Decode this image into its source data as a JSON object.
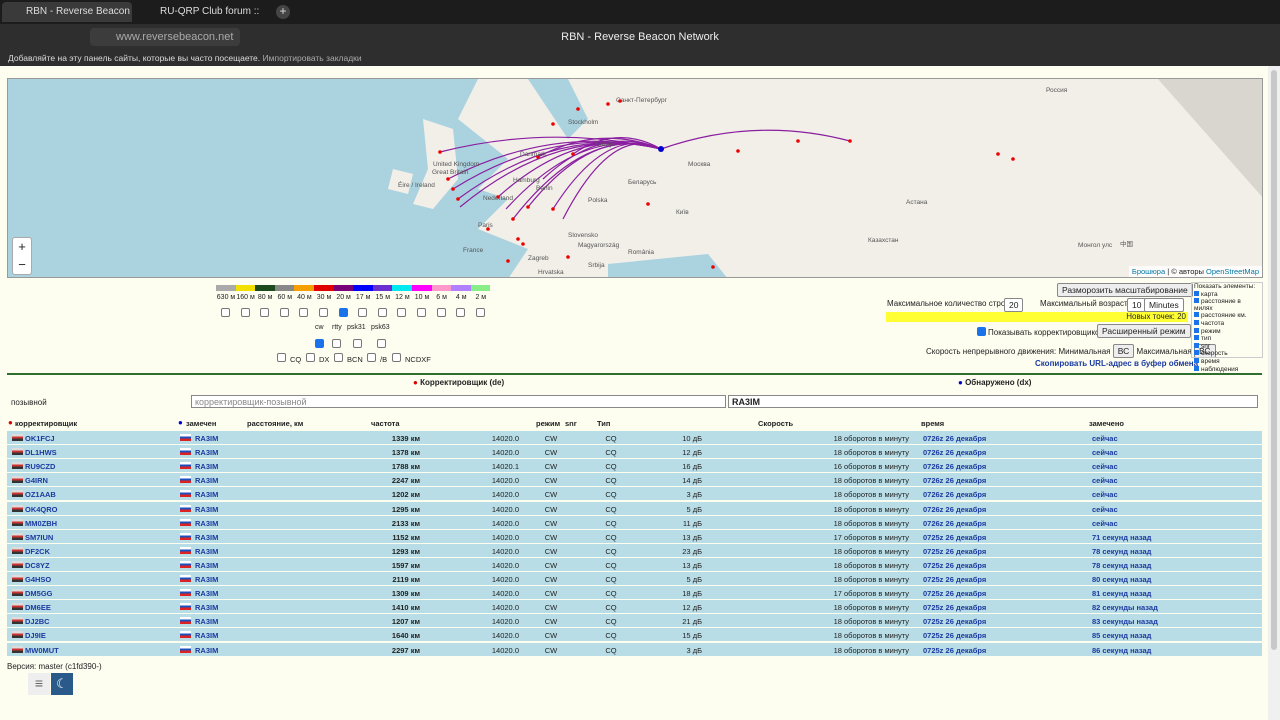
{
  "browser": {
    "tabs": [
      "RBN - Reverse Beacon N",
      "RU-QRP Club forum :: Тема"
    ],
    "url": "www.reversebeacon.net",
    "page_title": "RBN - Reverse Beacon Network",
    "bookmarks_hint": "Добавляйте на эту панель сайты, которые вы часто посещаете.",
    "bookmarks_import": "Импортировать закладки"
  },
  "map": {
    "labels": [
      "Stockholm",
      "Danmark",
      "United Kingdom",
      "Great Britain",
      "Éire / Ireland",
      "Hamburg",
      "Nederland",
      "Berlin",
      "Polska",
      "Paris",
      "France",
      "Latvija",
      "Санкт-Петербург",
      "Москва",
      "Беларусь",
      "Київ",
      "Slovensko",
      "Magyarország",
      "Zagreb",
      "Hrvatska",
      "România",
      "Srbija",
      "Россия",
      "Астана",
      "Казахстан",
      "Монгол улс",
      "中国"
    ],
    "zoom_in": "+",
    "zoom_out": "−",
    "attribution": [
      "Брошюра",
      "| © авторы",
      "OpenStreetMap"
    ]
  },
  "bands": [
    "630 м",
    "160 м",
    "80 м",
    "60 м",
    "40 м",
    "30 м",
    "20 м",
    "17 м",
    "15 м",
    "12 м",
    "10 м",
    "6 м",
    "4 м",
    "2 м"
  ],
  "band_colors": [
    "#aaaaaa",
    "#f2e000",
    "#1d4a1d",
    "#888888",
    "#f5a000",
    "#e00000",
    "#7a007a",
    "#0000ff",
    "#6a2fd0",
    "#00e8f0",
    "#ff00ff",
    "#ff99cc",
    "#b080ff",
    "#88ee88"
  ],
  "band_checked": [
    false,
    false,
    false,
    false,
    false,
    false,
    true,
    false,
    false,
    false,
    false,
    false,
    false,
    false
  ],
  "modes": [
    "cw",
    "rtty",
    "psk31",
    "psk63"
  ],
  "mode_checked": [
    true,
    false,
    false,
    false
  ],
  "types": [
    "CQ",
    "DX",
    "BCN",
    "/B",
    "NCDXF"
  ],
  "controls": {
    "unfreeze": "Разморозить масштабирование",
    "max_rows": "Максимальное количество строк",
    "max_rows_value": "20",
    "max_age": "Максимальный возраст:",
    "max_age_value": "10",
    "max_age_unit": "Minutes",
    "new_points": "Новых точек: 20",
    "show_spotters": "Показывать корректировщиков",
    "extended": "Расширенный режим",
    "speed": "Скорость непрерывного движения:",
    "min": "Минимальная",
    "max": "Максимальная",
    "bc": "ВС",
    "copy_url": "Скопировать URL-адрес в буфер обмена"
  },
  "show_elements": {
    "title": "Показать элементы:",
    "items": [
      "карта",
      "расстояние в милях",
      "расстояние км.",
      "частота",
      "режим",
      "тип",
      "snr",
      "скорость",
      "время",
      "наблюдения"
    ]
  },
  "filter": {
    "de": "Корректировщик (de)",
    "dx": "Обнаружено (dx)",
    "label": "позывной",
    "de_placeholder": "корректировщик-позывной",
    "dx_value": "RA3IM"
  },
  "table": {
    "headers": [
      "корректировщик",
      "замечен",
      "расстояние, км",
      "частота",
      "режим",
      "Тип",
      "snr",
      "Скорость",
      "время",
      "замечено"
    ],
    "rows": [
      [
        "OK1FCJ",
        "RA3IM",
        "1339 км",
        "14020.0",
        "CW",
        "CQ",
        "10 дБ",
        "18 оборотов в минуту",
        "0726z 26 декабря",
        "сейчас"
      ],
      [
        "DL1HWS",
        "RA3IM",
        "1378 км",
        "14020.0",
        "CW",
        "CQ",
        "12 дБ",
        "18 оборотов в минуту",
        "0726z 26 декабря",
        "сейчас"
      ],
      [
        "RU9CZD",
        "RA3IM",
        "1788 км",
        "14020.1",
        "CW",
        "CQ",
        "16 дБ",
        "16 оборотов в минуту",
        "0726z 26 декабря",
        "сейчас"
      ],
      [
        "G4IRN",
        "RA3IM",
        "2247 км",
        "14020.0",
        "CW",
        "CQ",
        "14 дБ",
        "18 оборотов в минуту",
        "0726z 26 декабря",
        "сейчас"
      ],
      [
        "OZ1AAB",
        "RA3IM",
        "1202 км",
        "14020.0",
        "CW",
        "CQ",
        "3 дБ",
        "18 оборотов в минуту",
        "0726z 26 декабря",
        "сейчас"
      ],
      [
        "OK4QRO",
        "RA3IM",
        "1295 км",
        "14020.0",
        "CW",
        "CQ",
        "5 дБ",
        "18 оборотов в минуту",
        "0726z 26 декабря",
        "сейчас"
      ],
      [
        "MM0ZBH",
        "RA3IM",
        "2133 км",
        "14020.0",
        "CW",
        "CQ",
        "11 дБ",
        "18 оборотов в минуту",
        "0726z 26 декабря",
        "сейчас"
      ],
      [
        "SM7IUN",
        "RA3IM",
        "1152 км",
        "14020.0",
        "CW",
        "CQ",
        "13 дБ",
        "17 оборотов в минуту",
        "0725z 26 декабря",
        "71 секунд назад"
      ],
      [
        "DF2CK",
        "RA3IM",
        "1293 км",
        "14020.0",
        "CW",
        "CQ",
        "23 дБ",
        "18 оборотов в минуту",
        "0725z 26 декабря",
        "78 секунд назад"
      ],
      [
        "DC8YZ",
        "RA3IM",
        "1597 км",
        "14020.0",
        "CW",
        "CQ",
        "13 дБ",
        "18 оборотов в минуту",
        "0725z 26 декабря",
        "78 секунд назад"
      ],
      [
        "G4HSO",
        "RA3IM",
        "2119 км",
        "14020.0",
        "CW",
        "CQ",
        "5 дБ",
        "18 оборотов в минуту",
        "0725z 26 декабря",
        "80 секунд назад"
      ],
      [
        "DM5GG",
        "RA3IM",
        "1309 км",
        "14020.0",
        "CW",
        "CQ",
        "18 дБ",
        "17 оборотов в минуту",
        "0725z 26 декабря",
        "81 секунд назад"
      ],
      [
        "DM6EE",
        "RA3IM",
        "1410 км",
        "14020.0",
        "CW",
        "CQ",
        "12 дБ",
        "18 оборотов в минуту",
        "0725z 26 декабря",
        "82 секунды назад"
      ],
      [
        "DJ2BC",
        "RA3IM",
        "1207 км",
        "14020.0",
        "CW",
        "CQ",
        "21 дБ",
        "18 оборотов в минуту",
        "0725z 26 декабря",
        "83 секунды назад"
      ],
      [
        "DJ9IE",
        "RA3IM",
        "1640 км",
        "14020.0",
        "CW",
        "CQ",
        "15 дБ",
        "18 оборотов в минуту",
        "0725z 26 декабря",
        "85 секунд назад"
      ],
      [
        "MW0MUT",
        "RA3IM",
        "2297 км",
        "14020.0",
        "CW",
        "CQ",
        "3 дБ",
        "18 оборотов в минуту",
        "0725z 26 декабря",
        "86 секунд назад"
      ]
    ]
  },
  "version": "Версия: master (c1fd390-)"
}
